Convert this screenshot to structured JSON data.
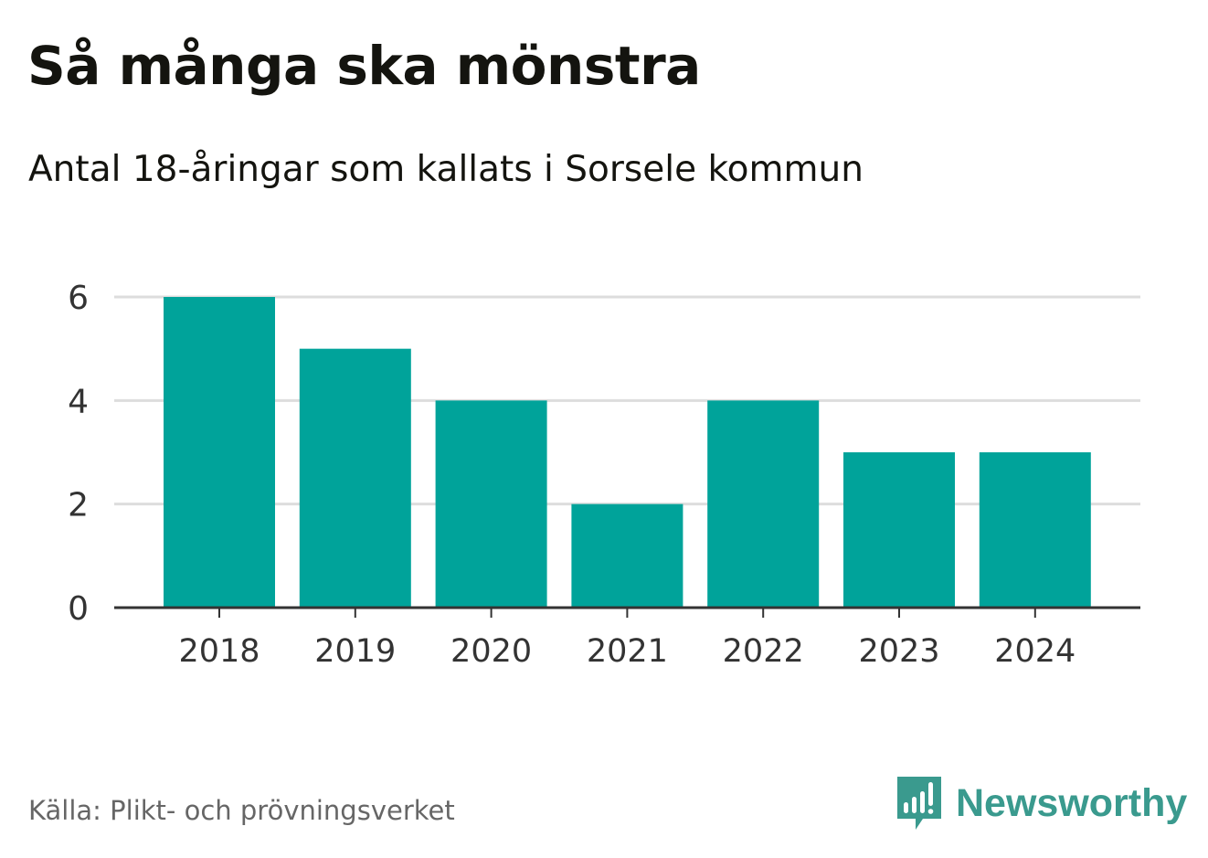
{
  "header": {
    "title": "Så många ska mönstra",
    "subtitle": "Antal 18-åringar som kallats i Sorsele kommun"
  },
  "chart_data": {
    "type": "bar",
    "title": "Så många ska mönstra",
    "subtitle": "Antal 18-åringar som kallats i Sorsele kommun",
    "categories": [
      "2018",
      "2019",
      "2020",
      "2021",
      "2022",
      "2023",
      "2024"
    ],
    "values": [
      6,
      5,
      4,
      2,
      4,
      3,
      3
    ],
    "xlabel": "",
    "ylabel": "",
    "ylim": [
      0,
      6
    ],
    "yticks": [
      0,
      2,
      4,
      6
    ],
    "grid": true,
    "legend": "none",
    "bar_color": "#00a39a"
  },
  "footer": {
    "source": "Källa: Plikt- och prövningsverket",
    "brand": "Newsworthy",
    "brand_icon": "newsworthy-logo-icon",
    "brand_color": "#3a9a8e"
  },
  "colors": {
    "bar": "#00a39a",
    "grid": "#dddddd",
    "axis": "#333333",
    "text": "#14140f",
    "tick_text": "#333333",
    "source_text": "#666666"
  }
}
